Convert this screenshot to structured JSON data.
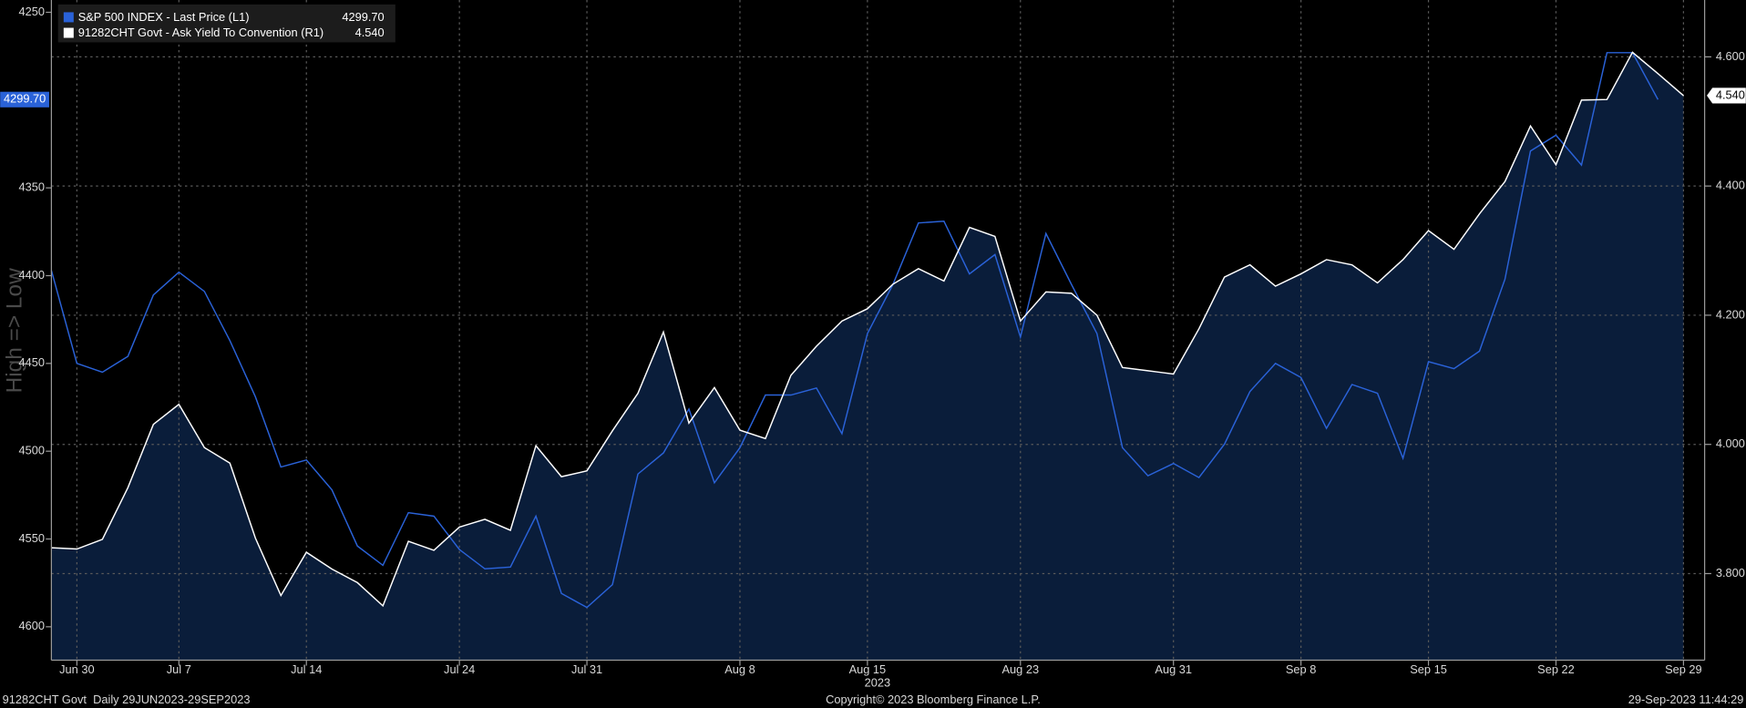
{
  "chart_data": {
    "type": "line",
    "y_axis_label": "High => Low",
    "x_axis_label": "2023",
    "footer_left": "91282CHT Govt  Daily 29JUN2023-29SEP2023",
    "footer_center": "Copyright© 2023 Bloomberg Finance L.P.",
    "footer_right": "29-Sep-2023 11:44:29",
    "x": [
      "2023-06-29",
      "2023-06-30",
      "2023-07-03",
      "2023-07-05",
      "2023-07-06",
      "2023-07-07",
      "2023-07-10",
      "2023-07-11",
      "2023-07-12",
      "2023-07-13",
      "2023-07-14",
      "2023-07-17",
      "2023-07-18",
      "2023-07-19",
      "2023-07-20",
      "2023-07-21",
      "2023-07-24",
      "2023-07-25",
      "2023-07-26",
      "2023-07-27",
      "2023-07-28",
      "2023-07-31",
      "2023-08-01",
      "2023-08-02",
      "2023-08-03",
      "2023-08-04",
      "2023-08-07",
      "2023-08-08",
      "2023-08-09",
      "2023-08-10",
      "2023-08-11",
      "2023-08-14",
      "2023-08-15",
      "2023-08-16",
      "2023-08-17",
      "2023-08-18",
      "2023-08-21",
      "2023-08-22",
      "2023-08-23",
      "2023-08-24",
      "2023-08-25",
      "2023-08-28",
      "2023-08-29",
      "2023-08-30",
      "2023-08-31",
      "2023-09-01",
      "2023-09-05",
      "2023-09-06",
      "2023-09-07",
      "2023-09-08",
      "2023-09-11",
      "2023-09-12",
      "2023-09-13",
      "2023-09-14",
      "2023-09-15",
      "2023-09-18",
      "2023-09-19",
      "2023-09-20",
      "2023-09-21",
      "2023-09-22",
      "2023-09-25",
      "2023-09-26",
      "2023-09-27",
      "2023-09-28",
      "2023-09-29"
    ],
    "xticks": [
      {
        "value": "2023-06-30",
        "label": "Jun 30"
      },
      {
        "value": "2023-07-07",
        "label": "Jul 7"
      },
      {
        "value": "2023-07-14",
        "label": "Jul 14"
      },
      {
        "value": "2023-07-24",
        "label": "Jul 24"
      },
      {
        "value": "2023-07-31",
        "label": "Jul 31"
      },
      {
        "value": "2023-08-08",
        "label": "Aug 8"
      },
      {
        "value": "2023-08-15",
        "label": "Aug 15"
      },
      {
        "value": "2023-08-23",
        "label": "Aug 23"
      },
      {
        "value": "2023-08-31",
        "label": "Aug 31"
      },
      {
        "value": "2023-09-08",
        "label": "Sep 8"
      },
      {
        "value": "2023-09-15",
        "label": "Sep 15"
      },
      {
        "value": "2023-09-22",
        "label": "Sep 22"
      },
      {
        "value": "2023-09-29",
        "label": "Sep 29"
      }
    ],
    "ylim": [
      4619,
      4243
    ],
    "yticks": [
      4250,
      4350,
      4400,
      4450,
      4500,
      4550,
      4600
    ],
    "y2lim": [
      3.666,
      4.688
    ],
    "y2ticks": [
      {
        "value": 3.8,
        "label": "3.800"
      },
      {
        "value": 4.0,
        "label": "4.000"
      },
      {
        "value": 4.2,
        "label": "4.200"
      },
      {
        "value": 4.4,
        "label": "4.400"
      },
      {
        "value": 4.6,
        "label": "4.600"
      }
    ],
    "grid": true,
    "legend": "upper left",
    "series": [
      {
        "name": "S&P 500 INDEX - Last Price (L1)",
        "color": "#2a62d8",
        "axis": "y",
        "fill": false,
        "last_label": "4299.70",
        "values": [
          4397,
          4450,
          4455,
          4446,
          4411,
          4398,
          4409,
          4437,
          4469,
          4509,
          4505,
          4522,
          4554,
          4565,
          4535,
          4537,
          4556,
          4567,
          4566,
          4537,
          4581,
          4589,
          4576,
          4513,
          4501,
          4476,
          4518,
          4498,
          4468,
          4468,
          4464,
          4490,
          4433,
          4405,
          4370,
          4369,
          4399,
          4388,
          4435,
          4376,
          4405,
          4433,
          4498,
          4514,
          4507,
          4515,
          4496,
          4466,
          4450,
          4458,
          4487,
          4462,
          4467,
          4504,
          4449,
          4453,
          4443,
          4402,
          4329,
          4320,
          4337,
          4273,
          4273,
          4299.7,
          null
        ]
      },
      {
        "name": "91282CHT Govt - Ask Yield To Convention (R1)",
        "color": "#ffffff",
        "axis": "y2",
        "fill": true,
        "last_label": "4.540",
        "values": [
          3.84,
          3.838,
          3.853,
          3.933,
          4.031,
          4.062,
          3.995,
          3.971,
          3.855,
          3.766,
          3.833,
          3.807,
          3.786,
          3.75,
          3.85,
          3.836,
          3.872,
          3.884,
          3.867,
          3.998,
          3.95,
          3.959,
          4.021,
          4.079,
          4.174,
          4.033,
          4.088,
          4.022,
          4.009,
          4.107,
          4.152,
          4.191,
          4.21,
          4.248,
          4.272,
          4.253,
          4.336,
          4.322,
          4.191,
          4.236,
          4.234,
          4.2,
          4.119,
          4.114,
          4.109,
          4.179,
          4.259,
          4.278,
          4.245,
          4.264,
          4.286,
          4.278,
          4.25,
          4.286,
          4.331,
          4.302,
          4.357,
          4.407,
          4.493,
          4.433,
          4.533,
          4.534,
          4.607,
          4.574,
          4.54
        ]
      }
    ]
  }
}
